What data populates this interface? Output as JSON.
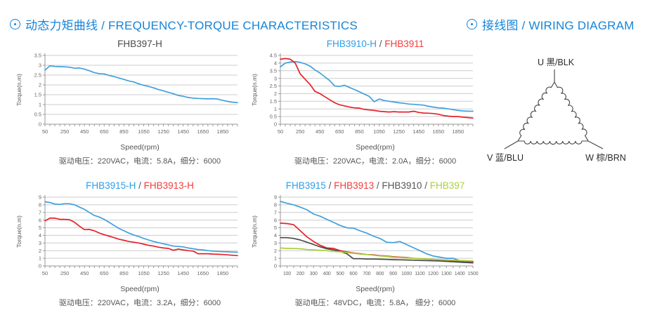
{
  "headers": {
    "charts": {
      "full": "动态力矩曲线 / FREQUENCY-TORQUE CHARACTERISTICS",
      "color": "#1684d8"
    },
    "wiring": {
      "full": "接线图 / WIRING DIAGRAM",
      "color": "#1684d8"
    }
  },
  "colors": {
    "blue_line": "#3fa0dc",
    "red_line": "#e62129",
    "gray_line": "#4a4a4a",
    "green_line": "#a8cf3e",
    "grid": "#cccccc",
    "axis": "#999999"
  },
  "chart_data": [
    {
      "type": "line",
      "title_parts": [
        {
          "text": "FHB397-H",
          "color": "#4a4a4a"
        }
      ],
      "xlabel": "Speed(rpm)",
      "ylabel": "Torque(n.m)",
      "caption": "驱动电压：220VAC，电流：5.8A，细分：6000",
      "xlim": [
        50,
        2000
      ],
      "ylim": [
        0,
        3.5
      ],
      "ystep": 0.5,
      "xticks": [
        50,
        250,
        450,
        650,
        850,
        1050,
        1250,
        1450,
        1650,
        1850
      ],
      "minor_step": 50,
      "grid": true,
      "series": [
        {
          "name": "FHB397-H",
          "color": "#3fa0dc",
          "x_start": 50,
          "x_step": 50,
          "y": [
            2.75,
            2.97,
            2.94,
            2.93,
            2.92,
            2.9,
            2.85,
            2.86,
            2.8,
            2.72,
            2.62,
            2.57,
            2.56,
            2.48,
            2.42,
            2.35,
            2.28,
            2.2,
            2.15,
            2.05,
            1.98,
            1.92,
            1.85,
            1.76,
            1.7,
            1.62,
            1.55,
            1.46,
            1.42,
            1.36,
            1.33,
            1.31,
            1.3,
            1.29,
            1.3,
            1.28,
            1.21,
            1.16,
            1.12,
            1.1
          ]
        }
      ]
    },
    {
      "type": "line",
      "title_parts": [
        {
          "text": "FHB3910-H",
          "color": "#2d9ee8"
        },
        {
          "text": " / ",
          "color": "#555555"
        },
        {
          "text": "FHB3911",
          "color": "#f43b3b"
        }
      ],
      "xlabel": "Speed(rpm)",
      "ylabel": "Torque(n.m)",
      "caption": "驱动电压：220VAC，电流：2.0A，细分：6000",
      "xlim": [
        50,
        2000
      ],
      "ylim": [
        0,
        4.5
      ],
      "ystep": 0.5,
      "xticks": [
        50,
        250,
        450,
        650,
        850,
        1050,
        1250,
        1450,
        1650,
        1850
      ],
      "minor_step": 50,
      "grid": true,
      "series": [
        {
          "name": "FHB3910-H",
          "color": "#3fa0dc",
          "x_start": 50,
          "x_step": 50,
          "y": [
            3.75,
            4.0,
            4.07,
            4.1,
            4.05,
            3.95,
            3.8,
            3.55,
            3.35,
            3.1,
            2.85,
            2.5,
            2.47,
            2.55,
            2.4,
            2.27,
            2.12,
            1.97,
            1.82,
            1.47,
            1.65,
            1.55,
            1.5,
            1.45,
            1.4,
            1.37,
            1.32,
            1.3,
            1.27,
            1.25,
            1.17,
            1.12,
            1.07,
            1.05,
            1.0,
            0.95,
            0.9,
            0.87,
            0.85,
            0.85
          ]
        },
        {
          "name": "FHB3911",
          "color": "#e62129",
          "x_start": 50,
          "x_step": 50,
          "y": [
            4.25,
            4.3,
            4.25,
            4.0,
            3.3,
            2.95,
            2.6,
            2.15,
            2.0,
            1.8,
            1.6,
            1.4,
            1.27,
            1.2,
            1.12,
            1.07,
            1.05,
            0.97,
            0.93,
            0.9,
            0.85,
            0.82,
            0.8,
            0.82,
            0.8,
            0.8,
            0.8,
            0.85,
            0.77,
            0.73,
            0.72,
            0.7,
            0.65,
            0.57,
            0.53,
            0.5,
            0.5,
            0.46,
            0.43,
            0.4
          ]
        }
      ]
    },
    {
      "type": "line",
      "title_parts": [
        {
          "text": "FHB3915-H",
          "color": "#2d9ee8"
        },
        {
          "text": " / ",
          "color": "#555555"
        },
        {
          "text": "FHB3913-H",
          "color": "#f43b3b"
        }
      ],
      "xlabel": "Speed(rpm)",
      "ylabel": "Torque(n.m)",
      "caption": "驱动电压：220VAC，电流：3.2A，细分：6000",
      "xlim": [
        50,
        2000
      ],
      "ylim": [
        0,
        9
      ],
      "ystep": 1,
      "xticks": [
        50,
        250,
        450,
        650,
        850,
        1050,
        1250,
        1450,
        1650,
        1850
      ],
      "minor_step": 50,
      "grid": true,
      "series": [
        {
          "name": "FHB3915-H",
          "color": "#3fa0dc",
          "x_start": 50,
          "x_step": 50,
          "y": [
            8.4,
            8.3,
            8.1,
            8.05,
            8.15,
            8.15,
            8.0,
            7.7,
            7.4,
            7.0,
            6.6,
            6.4,
            6.1,
            5.7,
            5.3,
            4.9,
            4.6,
            4.3,
            4.05,
            3.85,
            3.6,
            3.4,
            3.2,
            3.05,
            2.9,
            2.75,
            2.6,
            2.55,
            2.5,
            2.35,
            2.25,
            2.15,
            2.1,
            2.0,
            1.95,
            1.9,
            1.87,
            1.85,
            1.82,
            1.8
          ]
        },
        {
          "name": "FHB3913-H",
          "color": "#e62129",
          "x_start": 50,
          "x_step": 50,
          "y": [
            5.9,
            6.25,
            6.25,
            6.1,
            6.1,
            6.05,
            5.7,
            5.2,
            4.75,
            4.78,
            4.6,
            4.3,
            4.1,
            3.9,
            3.7,
            3.5,
            3.35,
            3.2,
            3.1,
            3.0,
            2.85,
            2.7,
            2.6,
            2.45,
            2.35,
            2.3,
            2.05,
            2.2,
            2.1,
            2.0,
            1.95,
            1.6,
            1.6,
            1.6,
            1.55,
            1.52,
            1.5,
            1.45,
            1.4,
            1.35
          ]
        }
      ]
    },
    {
      "type": "line",
      "title_parts": [
        {
          "text": "FHB3915",
          "color": "#2d9ee8"
        },
        {
          "text": " / ",
          "color": "#555555"
        },
        {
          "text": "FHB3913",
          "color": "#f43b3b"
        },
        {
          "text": " / ",
          "color": "#555555"
        },
        {
          "text": "FHB3910",
          "color": "#555555"
        },
        {
          "text": " / ",
          "color": "#555555"
        },
        {
          "text": "FHB397",
          "color": "#abd140"
        }
      ],
      "xlabel": "Speed(rpm)",
      "ylabel": "Torque(n.m)",
      "caption": "驱动电压：48VDC，电流：5.8A， 细分：6000",
      "xlim": [
        50,
        1500
      ],
      "ylim": [
        0,
        9
      ],
      "ystep": 1,
      "xticks": [
        100,
        200,
        300,
        400,
        500,
        600,
        700,
        800,
        900,
        1000,
        1100,
        1200,
        1300,
        1400,
        1500
      ],
      "minor_step": 50,
      "grid": true,
      "series": [
        {
          "name": "FHB3915",
          "color": "#3fa0dc",
          "x_start": 50,
          "x_step": 50,
          "y": [
            8.45,
            8.2,
            8.0,
            7.7,
            7.35,
            6.8,
            6.5,
            6.1,
            5.7,
            5.3,
            5.0,
            4.95,
            4.6,
            4.3,
            3.9,
            3.6,
            3.1,
            3.05,
            3.2,
            2.8,
            2.4,
            2.0,
            1.6,
            1.3,
            1.15,
            1.0,
            1.0,
            0.7,
            0.6,
            0.6
          ]
        },
        {
          "name": "FHB3913",
          "color": "#e62129",
          "x_start": 50,
          "x_step": 50,
          "y": [
            5.6,
            5.55,
            5.4,
            4.6,
            3.8,
            3.2,
            2.7,
            2.35,
            2.3,
            2.0,
            1.85,
            1.7,
            1.6,
            1.5,
            1.45,
            1.35,
            1.3,
            1.2,
            1.15,
            1.1,
            1.0,
            0.95,
            0.9,
            0.85,
            0.8,
            0.75,
            0.7,
            0.65,
            0.6,
            0.55
          ]
        },
        {
          "name": "FHB3910",
          "color": "#4a4a4a",
          "x_start": 50,
          "x_step": 50,
          "y": [
            3.7,
            3.7,
            3.6,
            3.4,
            3.1,
            2.8,
            2.5,
            2.25,
            2.1,
            1.9,
            1.6,
            0.95,
            0.95,
            0.9,
            0.9,
            0.88,
            0.85,
            0.82,
            0.8,
            0.78,
            0.75,
            0.72,
            0.7,
            0.68,
            0.65,
            0.6,
            0.55,
            0.5,
            0.45,
            0.4
          ]
        },
        {
          "name": "FHB397",
          "color": "#a8cf3e",
          "x_start": 50,
          "x_step": 50,
          "y": [
            2.35,
            2.3,
            2.28,
            2.25,
            2.15,
            2.1,
            2.05,
            2.0,
            1.9,
            1.85,
            1.75,
            1.65,
            1.55,
            1.5,
            1.4,
            1.3,
            1.25,
            1.15,
            1.1,
            1.05,
            1.0,
            0.97,
            0.92,
            0.87,
            0.82,
            0.78,
            0.75,
            0.72,
            0.68,
            0.65
          ]
        }
      ]
    }
  ],
  "wiring_diagram": {
    "terminals": [
      {
        "label": "U 黑/BLK"
      },
      {
        "label": "V 蓝/BLU"
      },
      {
        "label": "W 棕/BRN"
      }
    ]
  }
}
